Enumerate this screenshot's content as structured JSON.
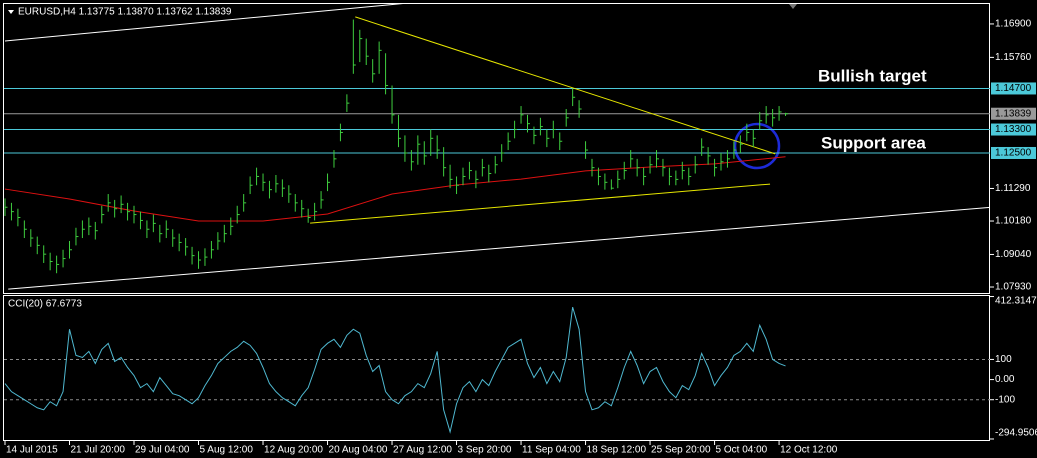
{
  "chart_data": [
    {
      "type": "ohlc",
      "header": "EURUSD,H4  1.13775 1.13870 1.13762 1.13839",
      "bar_color": "#3fcf3f",
      "annotations": [
        "Bullish target",
        "Support area"
      ],
      "xlim": [
        -0.155,
        152.7
      ],
      "ylim": [
        1.0776,
        1.1758
      ],
      "yticks": [
        {
          "value": 1.169,
          "label": "1.16900"
        },
        {
          "value": 1.1576,
          "label": "1.15760"
        },
        {
          "value": 1.1129,
          "label": "1.11290"
        },
        {
          "value": 1.1018,
          "label": "1.10180"
        },
        {
          "value": 1.0904,
          "label": "1.09040"
        },
        {
          "value": 1.0793,
          "label": "1.07930"
        }
      ],
      "levels": [
        {
          "value": 1.147,
          "label": "1.14700",
          "color": "#4cc9d9"
        },
        {
          "value": 1.133,
          "label": "1.13300",
          "color": "#4cc9d9"
        },
        {
          "value": 1.125,
          "label": "1.12500",
          "color": "#4cc9d9"
        },
        {
          "value": 1.13839,
          "label": "1.13839",
          "color": "#9a9a9a"
        }
      ],
      "categories": [
        "14 Jul 2015",
        null,
        null,
        null,
        null,
        null,
        null,
        null,
        null,
        null,
        "21 Jul 20:00",
        null,
        null,
        null,
        null,
        null,
        null,
        null,
        null,
        null,
        "29 Jul 04:00",
        null,
        null,
        null,
        null,
        null,
        null,
        null,
        null,
        null,
        "5 Aug 12:00",
        null,
        null,
        null,
        null,
        null,
        null,
        null,
        null,
        null,
        "12 Aug 20:00",
        null,
        null,
        null,
        null,
        null,
        null,
        null,
        null,
        null,
        "20 Aug 04:00",
        null,
        null,
        null,
        null,
        null,
        null,
        null,
        null,
        null,
        "27 Aug 12:00",
        null,
        null,
        null,
        null,
        null,
        null,
        null,
        null,
        null,
        "3 Sep 20:00",
        null,
        null,
        null,
        null,
        null,
        null,
        null,
        null,
        null,
        "11 Sep 04:00",
        null,
        null,
        null,
        null,
        null,
        null,
        null,
        null,
        null,
        "18 Sep 12:00",
        null,
        null,
        null,
        null,
        null,
        null,
        null,
        null,
        null,
        "25 Sep 20:00",
        null,
        null,
        null,
        null,
        null,
        null,
        null,
        null,
        null,
        "5 Oct 04:00",
        null,
        null,
        null,
        null,
        null,
        null,
        null,
        null,
        null,
        "12 Oct 12:00",
        null
      ],
      "close": [
        1.1065,
        1.105,
        1.103,
        1.099,
        1.096,
        1.0935,
        1.0905,
        1.088,
        1.087,
        1.089,
        1.092,
        1.0965,
        1.099,
        1.1,
        1.0985,
        1.104,
        1.108,
        1.106,
        1.1075,
        1.105,
        1.104,
        1.102,
        1.099,
        1.101,
        1.0975,
        1.099,
        1.096,
        1.0945,
        1.093,
        1.09,
        1.0885,
        1.0895,
        1.092,
        1.095,
        1.0975,
        1.1,
        1.104,
        1.108,
        1.114,
        1.117,
        1.115,
        1.1125,
        1.1145,
        1.113,
        1.111,
        1.108,
        1.106,
        1.103,
        1.105,
        1.109,
        1.115,
        1.123,
        1.132,
        1.142,
        1.155,
        1.164,
        1.158,
        1.152,
        1.16,
        1.148,
        1.138,
        1.13,
        1.125,
        1.122,
        1.128,
        1.124,
        1.13,
        1.126,
        1.12,
        1.116,
        1.114,
        1.117,
        1.119,
        1.116,
        1.12,
        1.118,
        1.121,
        1.125,
        1.129,
        1.133,
        1.138,
        1.135,
        1.131,
        1.134,
        1.13,
        1.133,
        1.129,
        1.137,
        1.144,
        1.14,
        1.126,
        1.12,
        1.117,
        1.115,
        1.113,
        1.116,
        1.119,
        1.123,
        1.12,
        1.117,
        1.121,
        1.123,
        1.12,
        1.117,
        1.116,
        1.119,
        1.117,
        1.121,
        1.127,
        1.124,
        1.12,
        1.122,
        1.123,
        1.126,
        1.128,
        1.132,
        1.13,
        1.136,
        1.138,
        1.137,
        1.139,
        1.13839
      ],
      "high": [
        1.1095,
        1.108,
        1.106,
        1.102,
        1.099,
        1.0965,
        1.0935,
        1.091,
        1.09,
        1.092,
        1.095,
        1.0995,
        1.102,
        1.103,
        1.1015,
        1.107,
        1.111,
        1.109,
        1.1105,
        1.108,
        1.107,
        1.105,
        1.102,
        1.104,
        1.1005,
        1.102,
        1.099,
        1.0975,
        1.096,
        1.093,
        1.0915,
        1.0925,
        1.095,
        1.098,
        1.1005,
        1.103,
        1.107,
        1.111,
        1.117,
        1.12,
        1.118,
        1.1155,
        1.1175,
        1.116,
        1.114,
        1.111,
        1.109,
        1.106,
        1.108,
        1.112,
        1.118,
        1.126,
        1.135,
        1.145,
        1.1705,
        1.167,
        1.164,
        1.157,
        1.163,
        1.159,
        1.148,
        1.138,
        1.131,
        1.126,
        1.131,
        1.129,
        1.133,
        1.131,
        1.127,
        1.121,
        1.117,
        1.12,
        1.122,
        1.119,
        1.123,
        1.121,
        1.124,
        1.128,
        1.132,
        1.136,
        1.141,
        1.138,
        1.134,
        1.137,
        1.133,
        1.136,
        1.132,
        1.14,
        1.147,
        1.143,
        1.129,
        1.123,
        1.12,
        1.118,
        1.116,
        1.119,
        1.122,
        1.126,
        1.123,
        1.12,
        1.124,
        1.126,
        1.123,
        1.12,
        1.119,
        1.122,
        1.12,
        1.124,
        1.13,
        1.127,
        1.123,
        1.125,
        1.126,
        1.129,
        1.131,
        1.135,
        1.133,
        1.139,
        1.141,
        1.14,
        1.141,
        1.1387
      ],
      "low": [
        1.1035,
        1.102,
        1.1,
        1.096,
        1.093,
        1.0905,
        1.0875,
        1.085,
        1.084,
        1.086,
        1.089,
        1.0935,
        1.096,
        1.097,
        1.0955,
        1.101,
        1.105,
        1.103,
        1.1045,
        1.102,
        1.101,
        1.099,
        1.096,
        1.098,
        1.0945,
        1.096,
        1.093,
        1.0915,
        1.09,
        1.087,
        1.0855,
        1.0865,
        1.089,
        1.092,
        1.0945,
        1.097,
        1.101,
        1.105,
        1.111,
        1.114,
        1.112,
        1.1095,
        1.1115,
        1.11,
        1.108,
        1.105,
        1.103,
        1.1012,
        1.102,
        1.106,
        1.112,
        1.12,
        1.129,
        1.139,
        1.152,
        1.156,
        1.155,
        1.149,
        1.152,
        1.145,
        1.135,
        1.127,
        1.122,
        1.119,
        1.121,
        1.121,
        1.124,
        1.123,
        1.117,
        1.113,
        1.111,
        1.114,
        1.116,
        1.113,
        1.117,
        1.115,
        1.118,
        1.122,
        1.126,
        1.13,
        1.135,
        1.132,
        1.128,
        1.131,
        1.127,
        1.13,
        1.126,
        1.134,
        1.141,
        1.137,
        1.123,
        1.117,
        1.114,
        1.1125,
        1.1125,
        1.113,
        1.116,
        1.12,
        1.117,
        1.114,
        1.118,
        1.12,
        1.117,
        1.114,
        1.114,
        1.116,
        1.114,
        1.118,
        1.124,
        1.121,
        1.117,
        1.119,
        1.12,
        1.123,
        1.125,
        1.129,
        1.127,
        1.133,
        1.135,
        1.134,
        1.136,
        1.13762
      ],
      "lines": [
        {
          "color": "#ffffff",
          "x": [
            0,
            62.8
          ],
          "values": [
            1.1632,
            1.1762
          ]
        },
        {
          "color": "#ffffff",
          "x": [
            0.5,
            159
          ],
          "values": [
            1.0786,
            1.1076
          ]
        },
        {
          "color": "#e6e600",
          "x": [
            54.3,
            119.4
          ],
          "values": [
            1.1714,
            1.1247
          ]
        },
        {
          "color": "#e6e600",
          "x": [
            47.3,
            118.6
          ],
          "values": [
            1.1011,
            1.1144
          ]
        },
        {
          "color": "#dd1111",
          "x": [
            0,
            10,
            20,
            30,
            40,
            50,
            60,
            70,
            80,
            90,
            100,
            110,
            121
          ],
          "values": [
            1.1127,
            1.1093,
            1.1052,
            1.1018,
            1.1018,
            1.1042,
            1.111,
            1.1141,
            1.1161,
            1.1189,
            1.1202,
            1.1213,
            1.1237
          ]
        }
      ]
    },
    {
      "type": "line",
      "header": "CCI(20) 67.6773",
      "color": "#4fb8d0",
      "ylim": [
        -300,
        415
      ],
      "yticks": [
        {
          "value": 412.3147,
          "label": "412.3147"
        },
        100,
        {
          "value": 0,
          "label": "0.00"
        },
        -100,
        {
          "value": -294.9506,
          "label": "-294.9506"
        }
      ],
      "levels": [
        100,
        -100
      ],
      "values": [
        -20,
        -60,
        -80,
        -100,
        -120,
        -140,
        -150,
        -110,
        -130,
        -60,
        250,
        120,
        110,
        140,
        80,
        150,
        180,
        90,
        110,
        60,
        20,
        -40,
        -20,
        -60,
        10,
        -30,
        -70,
        -80,
        -100,
        -120,
        -90,
        -30,
        20,
        80,
        110,
        140,
        160,
        190,
        170,
        130,
        60,
        -20,
        -60,
        -90,
        -110,
        -130,
        -80,
        -40,
        50,
        150,
        180,
        200,
        160,
        220,
        250,
        230,
        120,
        40,
        70,
        -60,
        -100,
        -120,
        -80,
        -60,
        -20,
        -40,
        30,
        140,
        -150,
        -260,
        -120,
        -40,
        -10,
        -60,
        0,
        -30,
        40,
        100,
        160,
        180,
        200,
        80,
        10,
        60,
        -20,
        40,
        -10,
        110,
        360,
        250,
        -60,
        -150,
        -140,
        -110,
        -130,
        -40,
        60,
        140,
        70,
        -20,
        40,
        60,
        -10,
        -60,
        -90,
        -30,
        -50,
        20,
        130,
        60,
        -30,
        20,
        60,
        120,
        140,
        180,
        140,
        270,
        200,
        100,
        80,
        67.6773
      ]
    }
  ]
}
